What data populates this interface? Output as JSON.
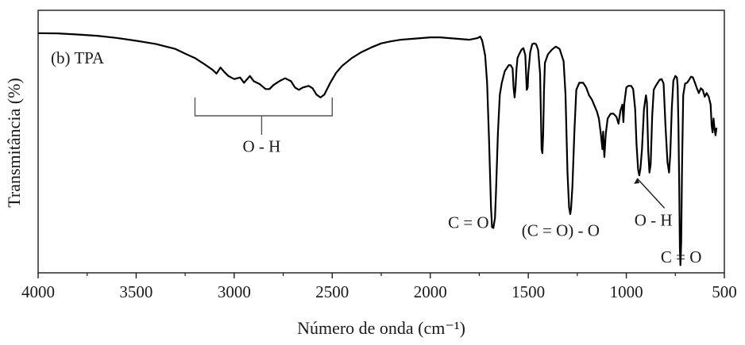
{
  "chart_data": {
    "type": "line",
    "xlabel": "Número de onda (cm⁻¹)",
    "ylabel": "Transmitância (%)",
    "panel_label": "(b) TPA",
    "xlim": [
      4000,
      500
    ],
    "x_reversed": true,
    "ylim": [
      0,
      100
    ],
    "y_ticks_shown": false,
    "grid": false,
    "x_ticks": [
      4000,
      3500,
      3000,
      2500,
      2000,
      1500,
      1000,
      500
    ],
    "x_tick_labels": [
      "4000",
      "3500",
      "3000",
      "2500",
      "2000",
      "1500",
      "1000",
      "500"
    ],
    "series": [
      {
        "color": "#000000",
        "points": [
          [
            4000,
            91.3
          ],
          [
            3900,
            91.2
          ],
          [
            3800,
            90.8
          ],
          [
            3700,
            90.3
          ],
          [
            3600,
            89.5
          ],
          [
            3500,
            88.4
          ],
          [
            3400,
            87.2
          ],
          [
            3300,
            85.3
          ],
          [
            3250,
            83.5
          ],
          [
            3200,
            81.8
          ],
          [
            3150,
            79.4
          ],
          [
            3110,
            77.3
          ],
          [
            3090,
            75.9
          ],
          [
            3070,
            78.2
          ],
          [
            3050,
            76.5
          ],
          [
            3030,
            75.0
          ],
          [
            3000,
            73.8
          ],
          [
            2970,
            74.4
          ],
          [
            2950,
            72.4
          ],
          [
            2920,
            75.0
          ],
          [
            2900,
            73.0
          ],
          [
            2870,
            71.9
          ],
          [
            2840,
            70.0
          ],
          [
            2820,
            70.0
          ],
          [
            2800,
            71.5
          ],
          [
            2770,
            73.0
          ],
          [
            2740,
            74.1
          ],
          [
            2710,
            73.0
          ],
          [
            2690,
            70.6
          ],
          [
            2670,
            69.7
          ],
          [
            2650,
            70.6
          ],
          [
            2620,
            71.2
          ],
          [
            2600,
            70.3
          ],
          [
            2580,
            67.9
          ],
          [
            2560,
            66.8
          ],
          [
            2540,
            67.9
          ],
          [
            2510,
            72.4
          ],
          [
            2480,
            76.2
          ],
          [
            2450,
            78.8
          ],
          [
            2400,
            81.8
          ],
          [
            2350,
            84.1
          ],
          [
            2300,
            85.9
          ],
          [
            2250,
            87.4
          ],
          [
            2200,
            88.2
          ],
          [
            2150,
            88.8
          ],
          [
            2100,
            89.1
          ],
          [
            2050,
            89.4
          ],
          [
            2000,
            89.7
          ],
          [
            1950,
            89.7
          ],
          [
            1900,
            89.4
          ],
          [
            1850,
            89.1
          ],
          [
            1800,
            88.8
          ],
          [
            1760,
            89.4
          ],
          [
            1745,
            90.0
          ],
          [
            1735,
            88.5
          ],
          [
            1720,
            82.9
          ],
          [
            1710,
            72.4
          ],
          [
            1700,
            50.0
          ],
          [
            1690,
            25.0
          ],
          [
            1685,
            17.4
          ],
          [
            1678,
            17.1
          ],
          [
            1670,
            20.9
          ],
          [
            1665,
            30.0
          ],
          [
            1655,
            53.2
          ],
          [
            1645,
            67.9
          ],
          [
            1635,
            72.4
          ],
          [
            1620,
            76.8
          ],
          [
            1600,
            79.1
          ],
          [
            1590,
            79.1
          ],
          [
            1580,
            77.9
          ],
          [
            1575,
            70.6
          ],
          [
            1570,
            66.8
          ],
          [
            1565,
            70.6
          ],
          [
            1560,
            77.6
          ],
          [
            1555,
            81.8
          ],
          [
            1545,
            83.5
          ],
          [
            1535,
            85.0
          ],
          [
            1525,
            85.6
          ],
          [
            1515,
            82.9
          ],
          [
            1508,
            69.7
          ],
          [
            1503,
            70.6
          ],
          [
            1500,
            75.9
          ],
          [
            1490,
            84.1
          ],
          [
            1480,
            87.1
          ],
          [
            1470,
            87.4
          ],
          [
            1460,
            87.1
          ],
          [
            1450,
            85.0
          ],
          [
            1440,
            75.9
          ],
          [
            1432,
            47.1
          ],
          [
            1428,
            45.6
          ],
          [
            1424,
            52.9
          ],
          [
            1420,
            69.1
          ],
          [
            1415,
            80.0
          ],
          [
            1400,
            83.2
          ],
          [
            1380,
            85.0
          ],
          [
            1360,
            86.2
          ],
          [
            1340,
            85.3
          ],
          [
            1320,
            80.6
          ],
          [
            1310,
            67.9
          ],
          [
            1300,
            38.2
          ],
          [
            1292,
            25.0
          ],
          [
            1286,
            22.4
          ],
          [
            1282,
            24.4
          ],
          [
            1275,
            32.9
          ],
          [
            1265,
            53.8
          ],
          [
            1255,
            69.7
          ],
          [
            1240,
            72.4
          ],
          [
            1220,
            72.4
          ],
          [
            1205,
            70.6
          ],
          [
            1190,
            67.6
          ],
          [
            1175,
            65.9
          ],
          [
            1160,
            63.2
          ],
          [
            1150,
            61.5
          ],
          [
            1140,
            58.8
          ],
          [
            1130,
            52.9
          ],
          [
            1122,
            47.1
          ],
          [
            1118,
            53.8
          ],
          [
            1112,
            44.1
          ],
          [
            1105,
            52.9
          ],
          [
            1095,
            58.8
          ],
          [
            1080,
            60.6
          ],
          [
            1065,
            60.6
          ],
          [
            1050,
            59.4
          ],
          [
            1040,
            56.8
          ],
          [
            1030,
            61.8
          ],
          [
            1020,
            64.1
          ],
          [
            1015,
            57.4
          ],
          [
            1010,
            64.7
          ],
          [
            1000,
            70.6
          ],
          [
            990,
            71.2
          ],
          [
            975,
            71.2
          ],
          [
            965,
            70.0
          ],
          [
            955,
            62.4
          ],
          [
            948,
            49.1
          ],
          [
            940,
            39.4
          ],
          [
            934,
            37.1
          ],
          [
            928,
            39.7
          ],
          [
            920,
            47.1
          ],
          [
            910,
            62.4
          ],
          [
            900,
            67.6
          ],
          [
            895,
            65.0
          ],
          [
            888,
            46.2
          ],
          [
            882,
            38.2
          ],
          [
            876,
            41.2
          ],
          [
            868,
            60.0
          ],
          [
            860,
            69.7
          ],
          [
            850,
            71.2
          ],
          [
            840,
            72.4
          ],
          [
            830,
            73.5
          ],
          [
            820,
            73.8
          ],
          [
            810,
            72.1
          ],
          [
            800,
            55.9
          ],
          [
            790,
            42.1
          ],
          [
            782,
            38.2
          ],
          [
            776,
            45.0
          ],
          [
            768,
            62.4
          ],
          [
            760,
            73.2
          ],
          [
            750,
            75.0
          ],
          [
            742,
            74.4
          ],
          [
            738,
            71.2
          ],
          [
            734,
            55.9
          ],
          [
            730,
            32.4
          ],
          [
            727,
            9.7
          ],
          [
            724,
            2.9
          ],
          [
            720,
            11.8
          ],
          [
            716,
            39.7
          ],
          [
            710,
            67.6
          ],
          [
            700,
            72.1
          ],
          [
            690,
            72.4
          ],
          [
            680,
            73.5
          ],
          [
            670,
            74.7
          ],
          [
            660,
            74.4
          ],
          [
            650,
            72.4
          ],
          [
            640,
            70.3
          ],
          [
            630,
            68.5
          ],
          [
            620,
            70.3
          ],
          [
            610,
            69.7
          ],
          [
            600,
            67.1
          ],
          [
            590,
            68.5
          ],
          [
            580,
            67.1
          ],
          [
            570,
            64.1
          ],
          [
            565,
            56.2
          ],
          [
            560,
            53.5
          ],
          [
            555,
            58.8
          ],
          [
            550,
            54.7
          ],
          [
            545,
            52.4
          ],
          [
            540,
            55.3
          ]
        ]
      }
    ],
    "annotations": [
      {
        "text": "O - H",
        "x": 2860,
        "y": 46,
        "bracket_from": 3200,
        "bracket_to": 2500
      },
      {
        "text": "C = O",
        "x": 1805,
        "y": 17
      },
      {
        "text": "(C = O) - O",
        "x": 1335,
        "y": 14
      },
      {
        "text": "O - H",
        "x": 862,
        "y": 18,
        "arrow_to": [
          945,
          36
        ]
      },
      {
        "text": "C = O",
        "x": 720,
        "y": 4
      }
    ]
  }
}
